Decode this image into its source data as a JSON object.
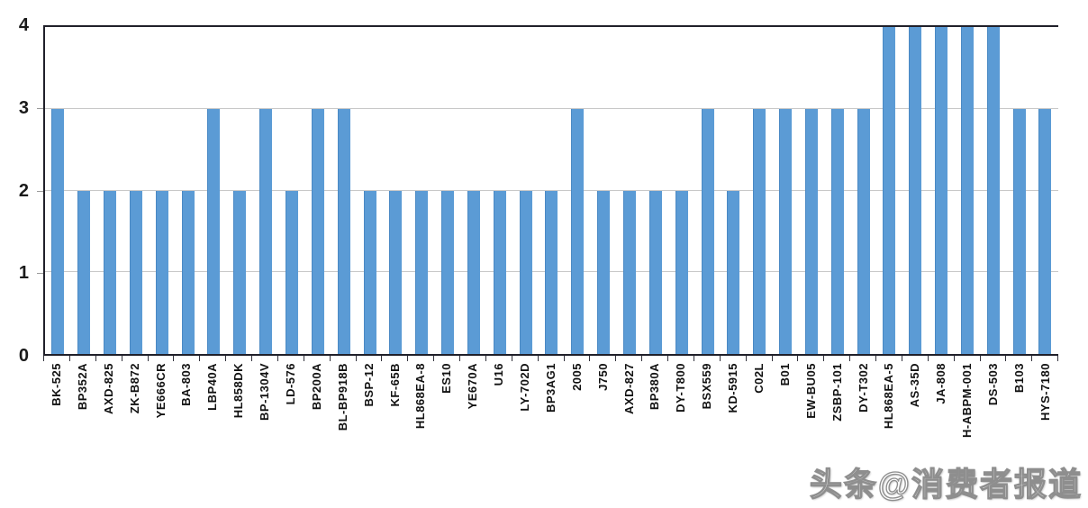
{
  "chart_data": {
    "type": "bar",
    "title": "",
    "xlabel": "",
    "ylabel": "",
    "ylim": [
      0,
      4
    ],
    "yticks": [
      0,
      1,
      2,
      3,
      4
    ],
    "grid": true,
    "legend": "none",
    "bar_color": "#5b9bd5",
    "axis_color": "#20202a",
    "gridline_color": "#c8c8c8",
    "categories": [
      "BK-525",
      "BP352A",
      "AXD-825",
      "ZK-B872",
      "YE666CR",
      "BA-803",
      "LBP40A",
      "HL858DK",
      "BP-1304V",
      "LD-576",
      "BP200A",
      "BL-BP918B",
      "BSP-12",
      "KF-65B",
      "HL868EA-8",
      "ES10",
      "YE670A",
      "U16",
      "LY-702D",
      "BP3AG1",
      "2005",
      "J750",
      "AXD-827",
      "BP380A",
      "DY-T800",
      "BSX559",
      "KD-5915",
      "C02L",
      "B01",
      "EW-BU05",
      "ZSBP-101",
      "DY-T302",
      "HL868EA-5",
      "AS-35D",
      "JA-808",
      "H-ABPM-001",
      "DS-503",
      "B103",
      "HYS-7180"
    ],
    "values": [
      3,
      2,
      2,
      2,
      2,
      2,
      3,
      2,
      3,
      2,
      3,
      3,
      2,
      2,
      2,
      2,
      2,
      2,
      2,
      2,
      3,
      2,
      2,
      2,
      2,
      3,
      2,
      3,
      3,
      3,
      3,
      3,
      4,
      4,
      4,
      4,
      4,
      3,
      3
    ]
  },
  "watermark": {
    "text": "头条@消费者报道"
  }
}
